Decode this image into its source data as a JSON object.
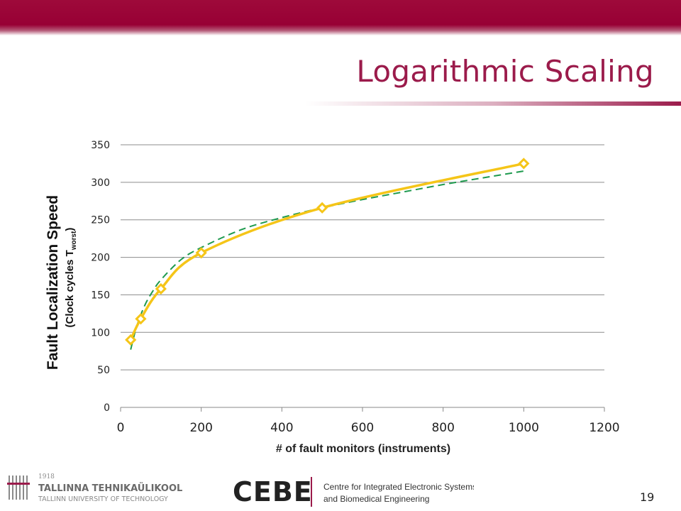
{
  "slide": {
    "title": "Logarithmic Scaling",
    "page_number": "19"
  },
  "colors": {
    "brand": "#9b1b4b",
    "banner": "#980035",
    "series": "#f5c518",
    "trendline": "#1e9a4e"
  },
  "chart_data": {
    "type": "scatter",
    "title": "",
    "xlabel": "# of fault monitors (instruments)",
    "ylabel": "Fault Localization Speed",
    "ylabel_secondary": "(Clock cycles T",
    "ylabel_subscript": "worst",
    "ylabel_suffix": ")",
    "xlim": [
      0,
      1200
    ],
    "ylim": [
      0,
      350
    ],
    "xticks": [
      0,
      200,
      400,
      600,
      800,
      1000,
      1200
    ],
    "yticks": [
      0,
      50,
      100,
      150,
      200,
      250,
      300,
      350
    ],
    "grid": "horizontal",
    "legend": "none",
    "series": [
      {
        "x": [
          25,
          50,
          100,
          200,
          500,
          1000
        ],
        "y": [
          90,
          118,
          158,
          206,
          266,
          325
        ],
        "style": "smooth line with diamond markers",
        "color": "#f5c518"
      }
    ],
    "trendline": {
      "type": "logarithmic",
      "style": "dashed",
      "color": "#1e9a4e",
      "x": [
        25,
        40,
        60,
        80,
        100,
        150,
        200,
        300,
        400,
        500,
        600,
        700,
        800,
        900,
        1000
      ],
      "y": [
        77,
        108,
        136,
        155,
        170,
        197,
        213,
        237,
        253,
        266,
        277,
        287,
        297,
        306,
        315
      ]
    }
  },
  "footer": {
    "university_year": "1918",
    "university_name": "TALLINNA TEHNIKAÜLIKOOL",
    "university_name_en": "TALLINN UNIVERSITY OF TECHNOLOGY",
    "center_logo": "CEBE",
    "center_line1": "Centre for Integrated Electronic Systems",
    "center_line2": "and Biomedical Engineering"
  }
}
